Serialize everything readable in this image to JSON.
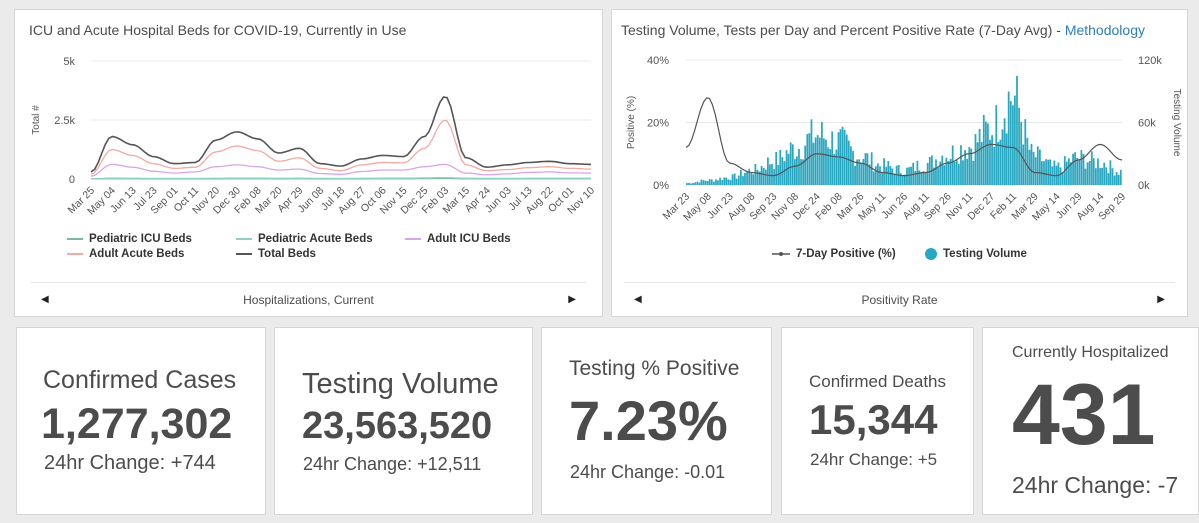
{
  "hosp_panel": {
    "title": "ICU and Acute Hospital Beds for COVID-19, Currently in Use",
    "ylabel": "Total #",
    "yticks": [
      "5k",
      "2.5k",
      "0"
    ],
    "xticks": [
      "Mar 25",
      "May 04",
      "Jun 13",
      "Jul 23",
      "Sep 01",
      "Oct 11",
      "Nov 20",
      "Dec 30",
      "Feb 08",
      "Mar 20",
      "Apr 29",
      "Jun 08",
      "Jul 18",
      "Aug 27",
      "Oct 06",
      "Nov 15",
      "Dec 25",
      "Feb 03",
      "Mar 15",
      "Apr 24",
      "Jun 03",
      "Jul 13",
      "Aug 22",
      "Oct 01",
      "Nov 10"
    ],
    "legend": [
      {
        "label": "Pediatric ICU Beds",
        "color": "#7fb8a0"
      },
      {
        "label": "Pediatric Acute Beds",
        "color": "#8ecfcc"
      },
      {
        "label": "Adult ICU Beds",
        "color": "#d9a5e6"
      },
      {
        "label": "Adult Acute Beds",
        "color": "#f4a8a2"
      },
      {
        "label": "Total Beds",
        "color": "#555555"
      }
    ],
    "nav_label": "Hospitalizations, Current"
  },
  "test_panel": {
    "title": "Testing Volume, Tests per Day and Percent Positive Rate (7-Day Avg) - ",
    "title_link": "Methodology",
    "yleft_label": "Positive (%)",
    "yright_label": "Testing Volume",
    "yleft_ticks": [
      "40%",
      "20%",
      "0%"
    ],
    "yright_ticks": [
      "120k",
      "60k",
      "0k"
    ],
    "xticks": [
      "Mar 23",
      "May 08",
      "Jun 23",
      "Aug 08",
      "Sep 23",
      "Nov 08",
      "Dec 24",
      "Feb 08",
      "Mar 26",
      "May 11",
      "Jun 26",
      "Aug 11",
      "Sep 26",
      "Nov 11",
      "Dec 27",
      "Feb 11",
      "Mar 29",
      "May 14",
      "Jun 29",
      "Aug 14",
      "Sep 29"
    ],
    "legend": [
      {
        "label": "7-Day Positive (%)",
        "color": "#555555"
      },
      {
        "label": "Testing Volume",
        "color": "#2aa7c0"
      }
    ],
    "nav_label": "Positivity Rate"
  },
  "chart_data": [
    {
      "type": "line",
      "title": "ICU and Acute Hospital Beds for COVID-19, Currently in Use",
      "ylabel": "Total #",
      "ylim": [
        0,
        5000
      ],
      "x": [
        "Mar 25",
        "May 04",
        "Jun 13",
        "Jul 23",
        "Sep 01",
        "Oct 11",
        "Nov 20",
        "Dec 30",
        "Feb 08",
        "Mar 20",
        "Apr 29",
        "Jun 08",
        "Jul 18",
        "Aug 27",
        "Oct 06",
        "Nov 15",
        "Dec 25",
        "Feb 03",
        "Mar 15",
        "Apr 24",
        "Jun 03",
        "Jul 13",
        "Aug 22",
        "Oct 01",
        "Nov 10"
      ],
      "series": [
        {
          "name": "Pediatric ICU Beds",
          "values": [
            5,
            15,
            12,
            8,
            8,
            8,
            10,
            12,
            12,
            10,
            12,
            8,
            8,
            10,
            12,
            12,
            18,
            22,
            12,
            10,
            10,
            12,
            12,
            12,
            12
          ]
        },
        {
          "name": "Pediatric Acute Beds",
          "values": [
            10,
            35,
            30,
            22,
            20,
            22,
            28,
            35,
            35,
            30,
            32,
            25,
            22,
            28,
            32,
            32,
            45,
            60,
            32,
            25,
            25,
            28,
            30,
            30,
            30
          ]
        },
        {
          "name": "Adult ICU Beds",
          "values": [
            120,
            620,
            500,
            330,
            250,
            300,
            520,
            600,
            520,
            380,
            420,
            230,
            200,
            320,
            380,
            380,
            520,
            620,
            250,
            180,
            220,
            280,
            300,
            260,
            250
          ]
        },
        {
          "name": "Adult Acute Beds",
          "values": [
            200,
            1250,
            1000,
            650,
            450,
            500,
            1150,
            1400,
            1200,
            750,
            900,
            450,
            350,
            600,
            700,
            680,
            1300,
            2500,
            600,
            350,
            400,
            480,
            520,
            450,
            420
          ]
        },
        {
          "name": "Total Beds",
          "values": [
            300,
            1800,
            1450,
            950,
            650,
            700,
            1650,
            2000,
            1700,
            1100,
            1300,
            650,
            550,
            850,
            1000,
            950,
            1800,
            3500,
            900,
            500,
            600,
            700,
            750,
            650,
            620
          ]
        }
      ]
    },
    {
      "type": "bar",
      "title": "Testing Volume, Tests per Day and Percent Positive Rate (7-Day Avg) - Methodology",
      "x": [
        "Mar 23",
        "May 08",
        "Jun 23",
        "Aug 08",
        "Sep 23",
        "Nov 08",
        "Dec 24",
        "Feb 08",
        "Mar 26",
        "May 11",
        "Jun 26",
        "Aug 11",
        "Sep 26",
        "Nov 11",
        "Dec 27",
        "Feb 11",
        "Mar 29",
        "May 14",
        "Jun 29",
        "Aug 14",
        "Sep 29"
      ],
      "ylabel": "Positive (%)",
      "y2label": "Testing Volume",
      "ylim": [
        0,
        40
      ],
      "y2lim": [
        0,
        120000
      ],
      "series": [
        {
          "name": "Testing Volume",
          "axis": "right",
          "values": [
            2000,
            5000,
            8000,
            15000,
            25000,
            38000,
            52000,
            45000,
            30000,
            20000,
            15000,
            22000,
            32000,
            40000,
            58000,
            92000,
            30000,
            18000,
            28000,
            24000,
            14000
          ]
        },
        {
          "name": "7-Day Positive (%)",
          "axis": "left",
          "values": [
            12,
            28,
            7,
            4,
            3,
            6,
            10,
            9,
            7,
            4,
            3,
            4,
            7,
            10,
            13,
            12,
            4,
            3,
            8,
            13,
            8
          ]
        }
      ]
    }
  ],
  "cards": [
    {
      "title": "Confirmed Cases",
      "value": "1,277,302",
      "change": "24hr Change: +744"
    },
    {
      "title": "Testing Volume",
      "value": "23,563,520",
      "change": "24hr Change: +12,511"
    },
    {
      "title": "Testing % Positive",
      "value": "7.23%",
      "change": "24hr Change: -0.01"
    },
    {
      "title": "Confirmed Deaths",
      "value": "15,344",
      "change": "24hr Change: +5"
    },
    {
      "title": "Currently Hospitalized",
      "value": "431",
      "change": "24hr Change: -7"
    }
  ],
  "colors": {
    "accent": "#2aa7c0",
    "link": "#2d7dbd",
    "text": "#4c4c4c"
  },
  "icons": {
    "prev": "triangle-left",
    "next": "triangle-right"
  }
}
